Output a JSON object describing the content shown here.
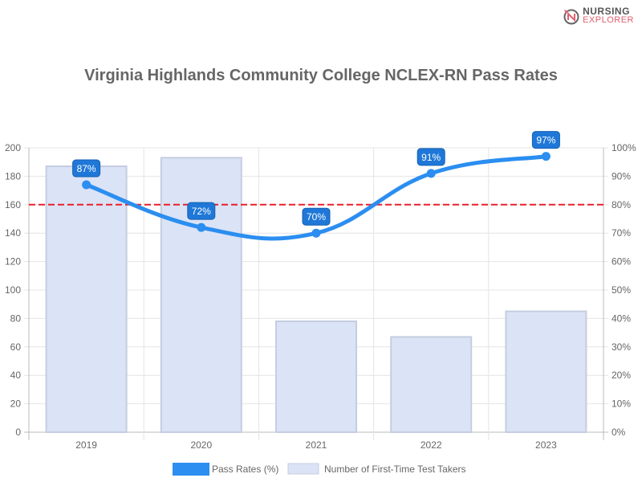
{
  "logo": {
    "line1": "NURSING",
    "line2": "EXPLORER"
  },
  "chart_data": {
    "type": "bar+line",
    "title": "Virginia Highlands Community College NCLEX-RN Pass Rates",
    "categories": [
      "2019",
      "2020",
      "2021",
      "2022",
      "2023"
    ],
    "series": [
      {
        "name": "Pass Rates (%)",
        "type": "line",
        "axis": "right",
        "values": [
          87,
          72,
          70,
          91,
          97
        ],
        "color": "#2b8ef0"
      },
      {
        "name": "Number of First-Time Test Takers",
        "type": "bar",
        "axis": "left",
        "values": [
          187,
          193,
          78,
          67,
          85
        ],
        "color": "#dbe3f6"
      }
    ],
    "data_labels": [
      "87%",
      "72%",
      "70%",
      "91%",
      "97%"
    ],
    "y_left": {
      "range": [
        0,
        200
      ],
      "ticks": [
        "0",
        "20",
        "40",
        "60",
        "80",
        "100",
        "120",
        "140",
        "160",
        "180",
        "200"
      ]
    },
    "y_right": {
      "range": [
        0,
        100
      ],
      "ticks": [
        "0%",
        "10%",
        "20%",
        "30%",
        "40%",
        "50%",
        "60%",
        "70%",
        "80%",
        "90%",
        "100%"
      ]
    },
    "reference_line": {
      "value": 80,
      "axis": "right",
      "color": "#e8202a",
      "style": "dashed"
    },
    "grid": true,
    "legend_placement": "bottom"
  }
}
